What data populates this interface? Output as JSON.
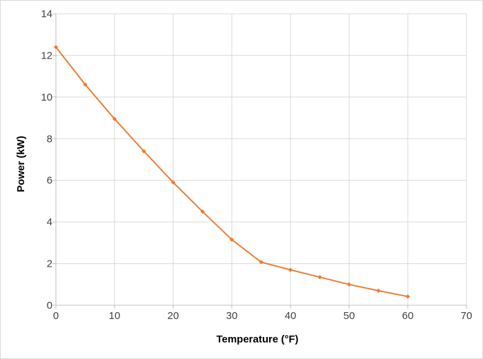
{
  "chart_data": {
    "type": "line",
    "title": "",
    "xlabel": "Temperature (°F)",
    "ylabel": "Power (kW)",
    "xlim": [
      0,
      70
    ],
    "ylim": [
      0,
      14
    ],
    "x_ticks": [
      0,
      10,
      20,
      30,
      40,
      50,
      60,
      70
    ],
    "y_ticks": [
      0,
      2,
      4,
      6,
      8,
      10,
      12,
      14
    ],
    "x_tick_labels": [
      "0",
      "10",
      "20",
      "30",
      "40",
      "50",
      "60",
      "70"
    ],
    "y_tick_labels": [
      "0",
      "2",
      "4",
      "6",
      "8",
      "10",
      "12",
      "14"
    ],
    "grid": true,
    "legend": "none",
    "series": [
      {
        "color": "#ED7D31",
        "marker": "diamond",
        "x": [
          0,
          5,
          10,
          15,
          20,
          25,
          30,
          35,
          40,
          45,
          50,
          55,
          60
        ],
        "y": [
          12.4,
          10.6,
          8.95,
          7.4,
          5.9,
          4.5,
          3.15,
          2.07,
          1.7,
          1.35,
          1.0,
          0.7,
          0.42
        ]
      }
    ]
  }
}
